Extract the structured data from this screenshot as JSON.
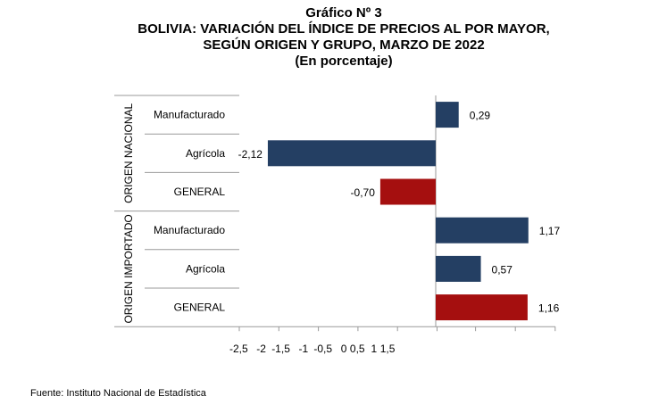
{
  "title": {
    "line1": "Gráfico Nº 3",
    "line2": "BOLIVIA: VARIACIÓN DEL ÍNDICE DE PRECIOS AL POR MAYOR,",
    "line3": "SEGÚN ORIGEN Y GRUPO, MARZO DE 2022",
    "line4": "(En porcentaje)"
  },
  "source": "Fuente: Instituto Nacional de Estadística",
  "colors": {
    "series": "#243F63",
    "general": "#A50F0F",
    "axis": "#999999"
  },
  "chart_data": {
    "type": "bar",
    "orientation": "horizontal",
    "groups": [
      {
        "name": "ORIGEN NACIONAL",
        "items": [
          {
            "category": "Manufacturado",
            "value": 0.29,
            "label": "0,29",
            "kind": "series"
          },
          {
            "category": "Agrícola",
            "value": -2.12,
            "label": "-2,12",
            "kind": "series"
          },
          {
            "category": "GENERAL",
            "value": -0.7,
            "label": "-0,70",
            "kind": "general"
          }
        ]
      },
      {
        "name": "ORIGEN IMPORTADO",
        "items": [
          {
            "category": "Manufacturado",
            "value": 1.17,
            "label": "1,17",
            "kind": "series"
          },
          {
            "category": "Agrícola",
            "value": 0.57,
            "label": "0,57",
            "kind": "series"
          },
          {
            "category": "GENERAL",
            "value": 1.16,
            "label": "1,16",
            "kind": "general"
          }
        ]
      }
    ],
    "x_ticks": [
      -2.5,
      -2,
      -1.5,
      -1,
      -0.5,
      0,
      0.5,
      1,
      1.5
    ],
    "x_tick_labels": [
      "-2,5",
      "-2",
      "-1,5",
      "-1",
      "-0,5",
      "0",
      "0,5",
      "1",
      "1,5"
    ],
    "xlim": [
      -2.5,
      1.5
    ],
    "grid": false,
    "legend": "none"
  }
}
